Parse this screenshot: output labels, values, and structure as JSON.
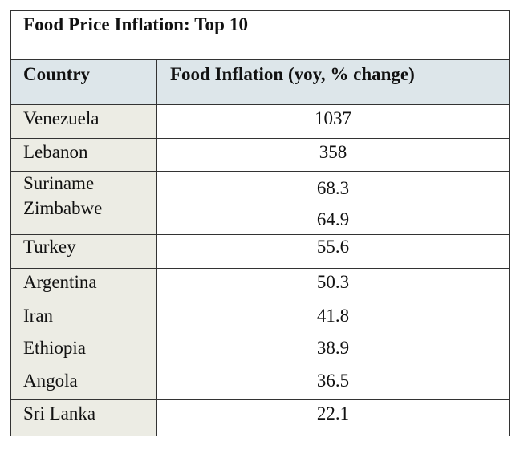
{
  "chart_data": {
    "type": "table",
    "title": "Food Price Inflation: Top 10",
    "columns": [
      "Country",
      "Food Inflation (yoy, % change)"
    ],
    "rows": [
      {
        "country": "Venezuela",
        "value": "1037"
      },
      {
        "country": "Lebanon",
        "value": "358"
      },
      {
        "country": "Suriname",
        "value": "68.3"
      },
      {
        "country": "Zimbabwe",
        "value": "64.9"
      },
      {
        "country": "Turkey",
        "value": "55.6"
      },
      {
        "country": "Argentina",
        "value": "50.3"
      },
      {
        "country": "Iran",
        "value": "41.8"
      },
      {
        "country": "Ethiopia",
        "value": "38.9"
      },
      {
        "country": "Angola",
        "value": "36.5"
      },
      {
        "country": "Sri Lanka",
        "value": "22.1"
      }
    ]
  }
}
